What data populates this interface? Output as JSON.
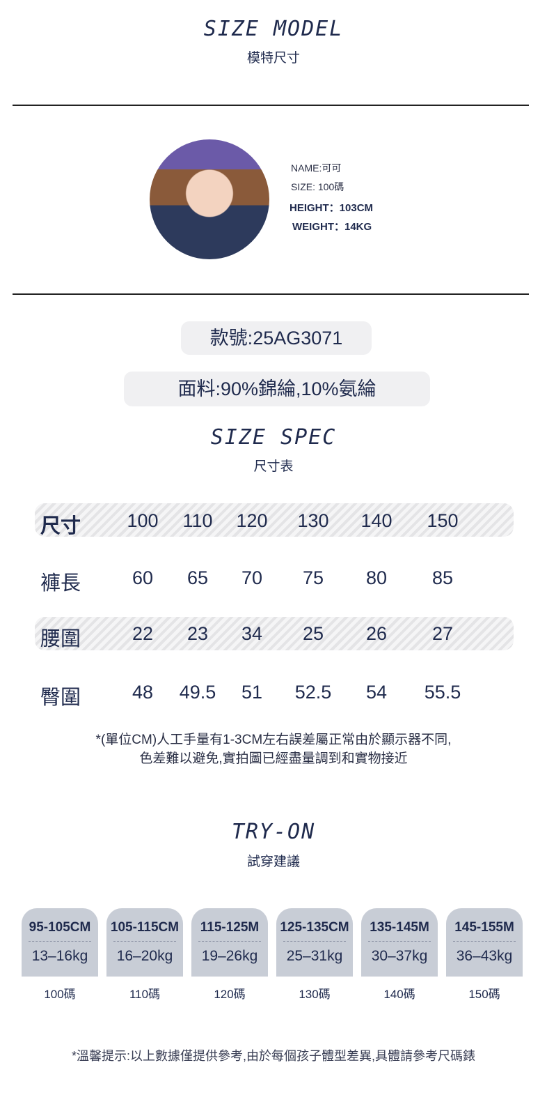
{
  "model": {
    "title": "SIZE MODEL",
    "subtitle": "模特尺寸",
    "name": "NAME:可可",
    "size": "SIZE: 100碼",
    "height": "HEIGHT：103CM",
    "weight": "WEIGHT：14KG"
  },
  "style_no": "款號:25AG3071",
  "fabric": "面料:90%錦綸,10%氨綸",
  "spec": {
    "title": "SIZE SPEC",
    "subtitle": "尺寸表",
    "rows": [
      {
        "label": "尺寸",
        "values": [
          "100",
          "110",
          "120",
          "130",
          "140",
          "150"
        ]
      },
      {
        "label": "褲長",
        "values": [
          "60",
          "65",
          "70",
          "75",
          "80",
          "85"
        ]
      },
      {
        "label": "腰圍",
        "values": [
          "22",
          "23",
          "34",
          "25",
          "26",
          "27"
        ]
      },
      {
        "label": "臀圍",
        "values": [
          "48",
          "49.5",
          "51",
          "52.5",
          "54",
          "55.5"
        ]
      }
    ],
    "note1": "*(單位CM)人工手量有1-3CM左右誤差屬正常由於顯示器不同,",
    "note2": "色差難以避免,實拍圖已經盡量調到和實物接近"
  },
  "tryon": {
    "title": "TRY-ON",
    "subtitle": "試穿建議",
    "cards": [
      {
        "range": "95-105CM",
        "weight": "13–16kg",
        "size": "100碼"
      },
      {
        "range": "105-115CM",
        "weight": "16–20kg",
        "size": "110碼"
      },
      {
        "range": "115-125M",
        "weight": "19–26kg",
        "size": "120碼"
      },
      {
        "range": "125-135CM",
        "weight": "25–31kg",
        "size": "130碼"
      },
      {
        "range": "135-145M",
        "weight": "30–37kg",
        "size": "140碼"
      },
      {
        "range": "145-155M",
        "weight": "36–43kg",
        "size": "150碼"
      }
    ]
  },
  "footer": "*溫馨提示:以上數據僅提供參考,由於每個孩子體型差異,具體請參考尺碼錶"
}
